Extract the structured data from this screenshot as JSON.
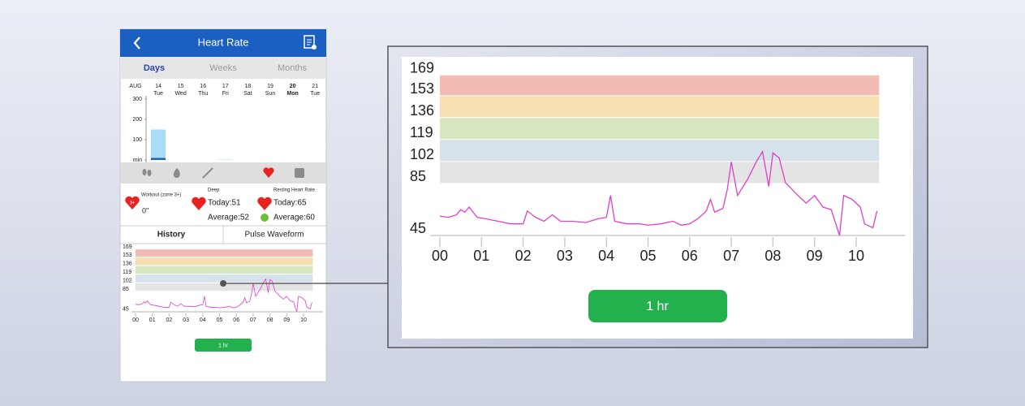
{
  "header": {
    "title": "Heart Rate"
  },
  "tabs": [
    "Days",
    "Weeks",
    "Months"
  ],
  "selected_tab": 0,
  "week": {
    "month": "AUG",
    "dates": [
      "14",
      "15",
      "16",
      "17",
      "18",
      "19",
      "20",
      "21"
    ],
    "weekdays": [
      "Tue",
      "Wed",
      "Thu",
      "Fri",
      "Sat",
      "Sun",
      "Mon",
      "Tue"
    ],
    "selected_day": 6
  },
  "bar_chart": {
    "type": "bar",
    "ylim": [
      0,
      300
    ],
    "yticks": [
      {
        "value": 0,
        "label": "min"
      },
      100,
      200,
      300
    ],
    "series": [
      {
        "color": "#1e63b8",
        "values": [
          10,
          0,
          0,
          0,
          0,
          0,
          0,
          0
        ]
      },
      {
        "color": "#a9dcf7",
        "values": [
          140,
          0,
          0,
          2,
          0,
          0,
          0,
          0
        ]
      }
    ]
  },
  "stats": {
    "workout": {
      "label": "Workout (zone 3+)",
      "badge": "3+",
      "value": "0\""
    },
    "deep": {
      "label": "Deep",
      "today": "Today:51",
      "average": "Average:52"
    },
    "resting": {
      "label": "Resting Heart Rate",
      "today": "Today:65",
      "average": "Average:60"
    }
  },
  "subtabs": [
    "History",
    "Pulse Waveform"
  ],
  "chart_data": {
    "type": "line",
    "color": "#e040c8",
    "xlim": [
      0,
      10.55
    ],
    "ylim": [
      45,
      169
    ],
    "xticks": [
      {
        "value": 0,
        "label": "00"
      },
      {
        "value": 1,
        "label": "01"
      },
      {
        "value": 2,
        "label": "02"
      },
      {
        "value": 3,
        "label": "03"
      },
      {
        "value": 4,
        "label": "04"
      },
      {
        "value": 5,
        "label": "05"
      },
      {
        "value": 6,
        "label": "06"
      },
      {
        "value": 7,
        "label": "07"
      },
      {
        "value": 8,
        "label": "08"
      },
      {
        "value": 9,
        "label": "09"
      },
      {
        "value": 10,
        "label": "10"
      }
    ],
    "yticks": [
      45,
      85,
      102,
      119,
      136,
      153,
      169
    ],
    "zones": [
      {
        "from": 85,
        "to": 102,
        "color": "#e4e4e4"
      },
      {
        "from": 102,
        "to": 119,
        "color": "#d5e2ea"
      },
      {
        "from": 119,
        "to": 136,
        "color": "#d6e6bf"
      },
      {
        "from": 136,
        "to": 153,
        "color": "#f7dfb4"
      },
      {
        "from": 153,
        "to": 169,
        "color": "#f2bcb4"
      }
    ],
    "x": [
      0,
      0.2,
      0.4,
      0.5,
      0.6,
      0.7,
      0.9,
      1.1,
      1.4,
      1.7,
      2.0,
      2.1,
      2.3,
      2.5,
      2.7,
      2.9,
      3.2,
      3.5,
      3.8,
      4.0,
      4.1,
      4.2,
      4.5,
      4.8,
      5.0,
      5.3,
      5.6,
      5.8,
      6.0,
      6.2,
      6.4,
      6.5,
      6.6,
      6.8,
      6.9,
      7.0,
      7.15,
      7.4,
      7.6,
      7.75,
      7.9,
      8.0,
      8.15,
      8.3,
      8.6,
      8.8,
      9.0,
      9.2,
      9.4,
      9.6,
      9.7,
      9.9,
      10.1,
      10.2,
      10.4,
      10.5
    ],
    "values": [
      60,
      59,
      61,
      65,
      63,
      67,
      59,
      58,
      56,
      54,
      54,
      64,
      59,
      56,
      61,
      56,
      56,
      55,
      58,
      59,
      76,
      56,
      54,
      54,
      53,
      54,
      56,
      53,
      54,
      58,
      64,
      73,
      63,
      66,
      80,
      102,
      76,
      89,
      102,
      110,
      83,
      109,
      105,
      86,
      76,
      70,
      76,
      67,
      65,
      45,
      76,
      73,
      67,
      54,
      51,
      64
    ]
  },
  "button": "1 hr"
}
